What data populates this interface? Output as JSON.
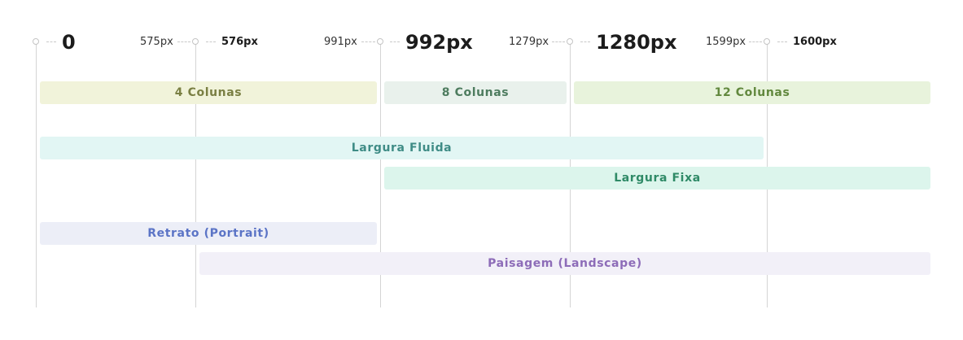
{
  "breakpoints": {
    "bp0": "0",
    "end_xs": "575px",
    "bp_sm": "576px",
    "end_sm": "991px",
    "bp_md": "992px",
    "end_md": "1279px",
    "bp_lg": "1280px",
    "end_lg": "1599px",
    "bp_xl": "1600px"
  },
  "bars": {
    "cols4": "4 Colunas",
    "cols8": "8 Colunas",
    "cols12": "12 Colunas",
    "fluid": "Largura Fluida",
    "fixed": "Largura Fixa",
    "portrait": "Retrato (Portrait)",
    "landscape": "Paisagem (Landscape)"
  },
  "colors": {
    "cols4_bg": "#f1f3da",
    "cols4_fg": "#7a7f43",
    "cols8_bg": "#e9f1ec",
    "cols8_fg": "#4e7c5f",
    "cols12_bg": "#e8f3dc",
    "cols12_fg": "#62883e",
    "fluid_bg": "#e2f6f4",
    "fluid_fg": "#3f8c86",
    "fixed_bg": "#dcf5ec",
    "fixed_fg": "#2f8a67",
    "portrait_bg": "#eceef7",
    "portrait_fg": "#5b74c6",
    "landscape_bg": "#f2f0f8",
    "landscape_fg": "#8d6cb8"
  }
}
